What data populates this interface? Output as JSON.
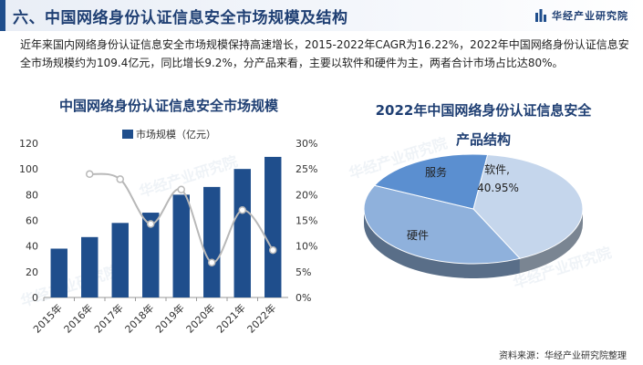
{
  "header": {
    "title": "六、中国网络身份认证信息安全市场规模及结构",
    "brand": "华经产业研究院"
  },
  "summary": "近年来国内网络身份认证信息安全市场规模保持高速增长，2015-2022年CAGR为16.22%，2022年中国网络身份认证信息安全市场规模约为109.4亿元，同比增长9.2%，分产品来看，主要以软件和硬件为主，两者合计市场占比达80%。",
  "source": "资料来源：华经产业研究院整理",
  "watermark": "华经产业研究院",
  "colors": {
    "bar": "#1f4e8c",
    "line": "#b8b8b8",
    "pie_software": "#c5d6ec",
    "pie_hardware": "#8fb1dc",
    "pie_service": "#5b8fd0",
    "title": "#1f3f73"
  },
  "chart_data": [
    {
      "type": "bar",
      "title": "中国网络身份认证信息安全市场规模",
      "categories": [
        "2015年",
        "2016年",
        "2017年",
        "2018年",
        "2019年",
        "2020年",
        "2021年",
        "2022年"
      ],
      "series": [
        {
          "name": "市场规模（亿元）",
          "values": [
            38,
            47,
            58,
            66,
            80,
            86,
            100,
            109.4
          ],
          "axis": "left"
        },
        {
          "type": "line",
          "values": [
            null,
            0.24,
            0.23,
            0.143,
            0.21,
            0.068,
            0.17,
            0.092
          ],
          "axis": "right"
        }
      ],
      "y_left": {
        "min": 0,
        "max": 120,
        "ticks": [
          "0",
          "20",
          "40",
          "60",
          "80",
          "100",
          "120"
        ]
      },
      "y_right": {
        "min": 0,
        "max": 0.3,
        "ticks": [
          "0%",
          "5%",
          "10%",
          "15%",
          "20%",
          "25%",
          "30%"
        ]
      },
      "legend": "top",
      "grid": false
    },
    {
      "type": "pie",
      "title_lines": [
        "2022年中国网络身份认证信息安全",
        "产品结构"
      ],
      "slices": [
        {
          "label": "软件",
          "value": 40.95,
          "value_label": "40.95%",
          "label_text": "软件,",
          "color_key": "pie_software"
        },
        {
          "label": "硬件",
          "value": 39.05,
          "label_text": "硬件",
          "color_key": "pie_hardware"
        },
        {
          "label": "服务",
          "value": 20.0,
          "label_text": "服务",
          "color_key": "pie_service"
        }
      ]
    }
  ]
}
